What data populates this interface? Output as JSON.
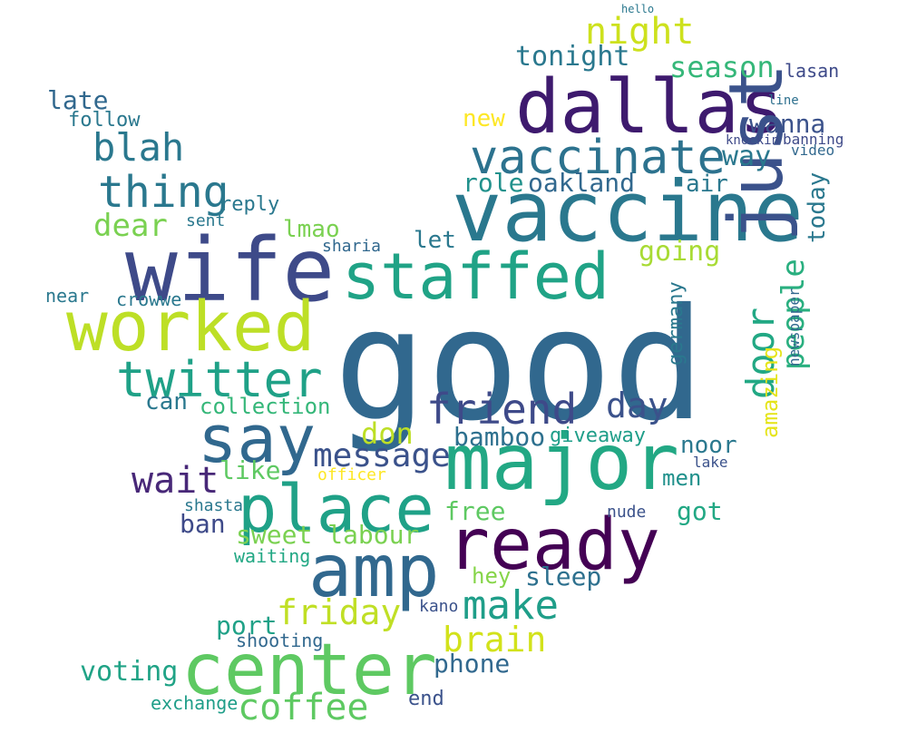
{
  "words": [
    {
      "text": "good",
      "color": "#31688e"
    },
    {
      "text": "vaccine",
      "color": "#2a788e"
    },
    {
      "text": "dallas",
      "color": "#3e1a6e"
    },
    {
      "text": "wife",
      "color": "#3e4a89"
    },
    {
      "text": "worked",
      "color": "#bddf26"
    },
    {
      "text": "major",
      "color": "#22a884"
    },
    {
      "text": "staffed",
      "color": "#20a386"
    },
    {
      "text": "ready",
      "color": "#440154"
    },
    {
      "text": "amp",
      "color": "#31688e"
    },
    {
      "text": "center",
      "color": "#5ec962"
    },
    {
      "text": "place",
      "color": "#1fa187"
    },
    {
      "text": "say",
      "color": "#31688e"
    },
    {
      "text": "just",
      "color": "#3b528b"
    },
    {
      "text": "vaccinate",
      "color": "#2c728e"
    },
    {
      "text": "twitter",
      "color": "#1fa187"
    },
    {
      "text": "thing",
      "color": "#2a788e"
    },
    {
      "text": "night",
      "color": "#cde11d"
    },
    {
      "text": "blah",
      "color": "#2a788e"
    },
    {
      "text": "friend",
      "color": "#3e4a89"
    },
    {
      "text": "make",
      "color": "#1f9e89"
    },
    {
      "text": "message",
      "color": "#3b528b"
    },
    {
      "text": "coffee",
      "color": "#5ec962"
    },
    {
      "text": "brain",
      "color": "#d2e21b"
    },
    {
      "text": "friday",
      "color": "#c0df25"
    },
    {
      "text": "season",
      "color": "#35b779"
    },
    {
      "text": "door",
      "color": "#22a884"
    },
    {
      "text": "people",
      "color": "#29af7f"
    },
    {
      "text": "day",
      "color": "#3b528b"
    },
    {
      "text": "wait",
      "color": "#482878"
    },
    {
      "text": "dear",
      "color": "#7ad151"
    },
    {
      "text": "voting",
      "color": "#20a386"
    },
    {
      "text": "tonight",
      "color": "#2a788e"
    },
    {
      "text": "bamboo",
      "color": "#2d708e"
    },
    {
      "text": "way",
      "color": "#2a788e"
    },
    {
      "text": "wanna",
      "color": "#3b528b"
    },
    {
      "text": "late",
      "color": "#31688e"
    },
    {
      "text": "role",
      "color": "#21918c"
    },
    {
      "text": "oakland",
      "color": "#31688e"
    },
    {
      "text": "sweet labour",
      "color": "#7ad151"
    },
    {
      "text": "sleep",
      "color": "#2d708e"
    },
    {
      "text": "port",
      "color": "#1fa187"
    },
    {
      "text": "phone",
      "color": "#31688e"
    },
    {
      "text": "don",
      "color": "#bddf26"
    },
    {
      "text": "got",
      "color": "#22a884"
    },
    {
      "text": "free",
      "color": "#5ec962"
    },
    {
      "text": "like",
      "color": "#5ec962"
    },
    {
      "text": "noor",
      "color": "#2a788e"
    },
    {
      "text": "amazing",
      "color": "#e5e419"
    },
    {
      "text": "germany",
      "color": "#2a788e"
    },
    {
      "text": "lmao",
      "color": "#7ad151"
    },
    {
      "text": "let",
      "color": "#2a788e"
    },
    {
      "text": "going",
      "color": "#a8db34"
    },
    {
      "text": "ban",
      "color": "#3e4a89"
    },
    {
      "text": "giveaway",
      "color": "#1f9e89"
    },
    {
      "text": "men",
      "color": "#21918c"
    },
    {
      "text": "air",
      "color": "#2a788e"
    },
    {
      "text": "today",
      "color": "#2a788e"
    },
    {
      "text": "new",
      "color": "#fde725"
    },
    {
      "text": "follow",
      "color": "#2a788e"
    },
    {
      "text": "can",
      "color": "#2a788e"
    },
    {
      "text": "collection",
      "color": "#35b779"
    },
    {
      "text": "hey",
      "color": "#86d549"
    },
    {
      "text": "exchange",
      "color": "#1f9e89"
    },
    {
      "text": "end",
      "color": "#3b528b"
    },
    {
      "text": "reply",
      "color": "#2a788e"
    },
    {
      "text": "lasan",
      "color": "#3e4a89"
    },
    {
      "text": "near",
      "color": "#2a788e"
    },
    {
      "text": "crowwe",
      "color": "#2a788e"
    },
    {
      "text": "sharia",
      "color": "#31688e"
    },
    {
      "text": "nude",
      "color": "#3b528b"
    },
    {
      "text": "waiting",
      "color": "#22a884"
    },
    {
      "text": "shooting",
      "color": "#31688e"
    },
    {
      "text": "kano",
      "color": "#3b528b"
    },
    {
      "text": "shasta",
      "color": "#2a788e"
    },
    {
      "text": "newspaper",
      "color": "#31688e"
    },
    {
      "text": "officer",
      "color": "#fde725"
    },
    {
      "text": "banning",
      "color": "#3e4a89"
    },
    {
      "text": "video",
      "color": "#31688e"
    },
    {
      "text": "lake",
      "color": "#3b528b"
    },
    {
      "text": "knockin",
      "color": "#3e4a89"
    },
    {
      "text": "sent",
      "color": "#2a788e"
    },
    {
      "text": "line",
      "color": "#2d708e"
    },
    {
      "text": "hello",
      "color": "#2a788e"
    }
  ]
}
